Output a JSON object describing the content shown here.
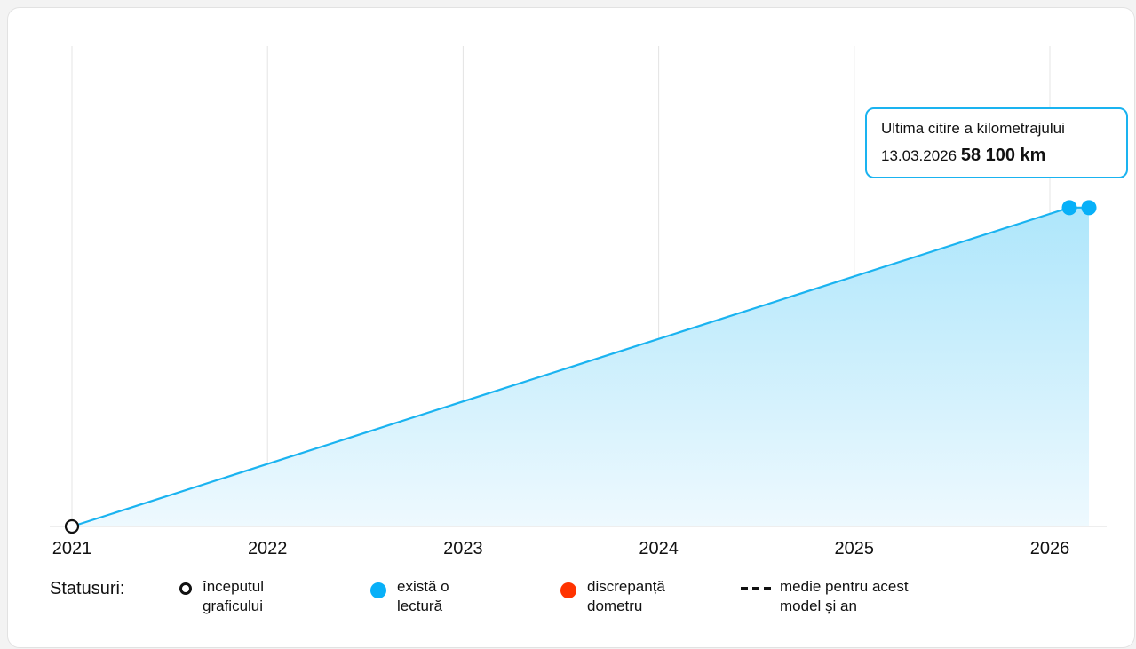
{
  "chart_data": {
    "type": "area",
    "x_ticks": [
      "2021",
      "2022",
      "2023",
      "2024",
      "2025",
      "2026"
    ],
    "x_range": [
      2021,
      2026.2
    ],
    "ylim": [
      0,
      66000
    ],
    "grid": {
      "vertical": true,
      "horizontal": false
    },
    "series": [
      {
        "points": [
          {
            "x": 2021.0,
            "y": 0
          },
          {
            "x": 2026.1,
            "y": 58100
          },
          {
            "x": 2026.2,
            "y": 58100
          }
        ],
        "markers": [
          {
            "index": 0,
            "status": "start"
          },
          {
            "index": 1,
            "status": "reading"
          },
          {
            "index": 2,
            "status": "reading"
          }
        ]
      }
    ],
    "tooltip": {
      "title": "Ultima citire a kilometrajului",
      "date": "13.03.2026",
      "value": "58 100 km"
    }
  },
  "colors": {
    "line": "#1ab3f0",
    "marker_reading": "#08b0f8",
    "marker_discrepancy": "#ff3300",
    "grid": "#e4e4e4"
  },
  "legend": {
    "title": "Statusuri:",
    "items": [
      {
        "symbol": "hollow-circle",
        "line1": "începutul",
        "line2": "graficului"
      },
      {
        "symbol": "blue-dot",
        "line1": "există o",
        "line2": "lectură"
      },
      {
        "symbol": "red-dot",
        "line1": "discrepanță",
        "line2": "dometru"
      },
      {
        "symbol": "dashed-line",
        "line1": "medie pentru acest",
        "line2": "model și an"
      }
    ]
  }
}
